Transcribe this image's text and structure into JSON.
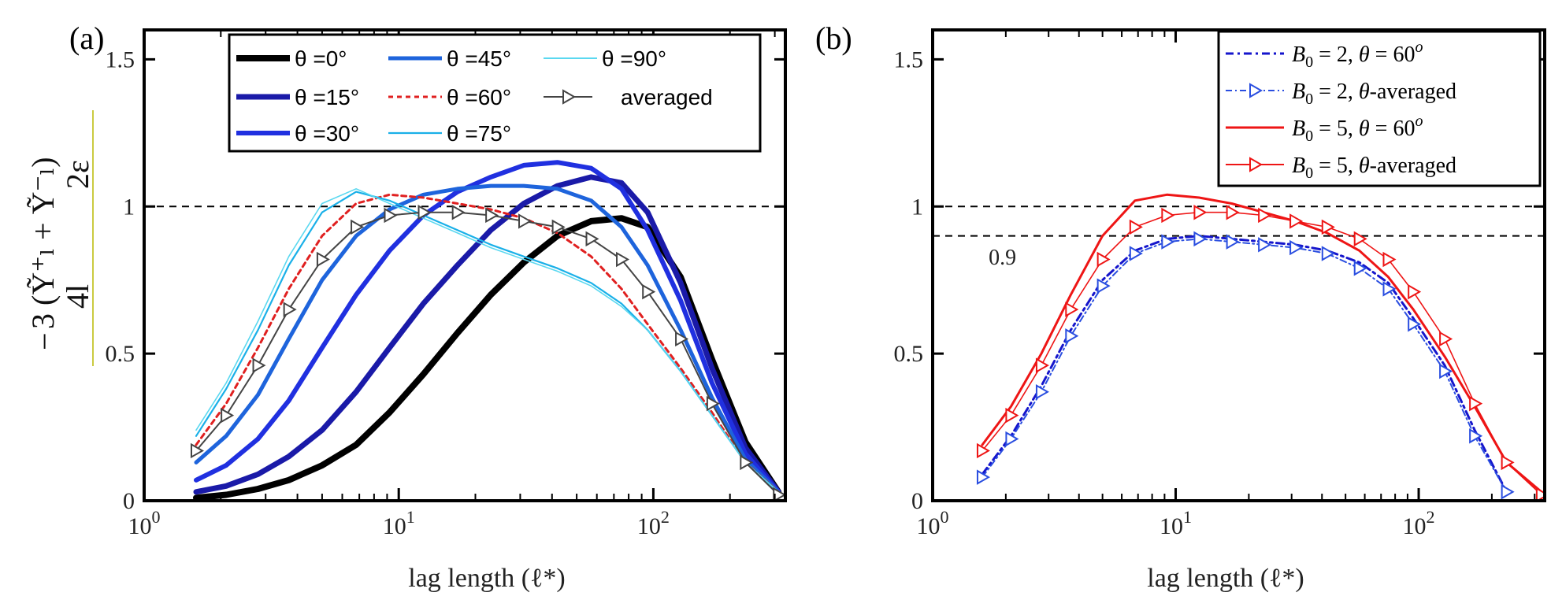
{
  "chart_data": [
    {
      "type": "line",
      "panel_label": "(a)",
      "xlabel": "lag length (ℓ*)",
      "ylabel": {
        "numerator": "3 (Ỹ⁺ₗ + Ỹ⁻ₗ)",
        "denominator_left": "4l",
        "denominator_right": "2ε",
        "minus": "−"
      },
      "xscale": "log",
      "xlim": [
        1,
        330
      ],
      "ylim": [
        0,
        1.6
      ],
      "xticks": [
        1,
        10,
        100
      ],
      "xtick_labels": [
        {
          "base": "10",
          "exp": "0"
        },
        {
          "base": "10",
          "exp": "1"
        },
        {
          "base": "10",
          "exp": "2"
        }
      ],
      "yticks": [
        0,
        0.5,
        1,
        1.5
      ],
      "ytick_labels": [
        "0",
        "0.5",
        "1",
        "1.5"
      ],
      "reference_lines": [
        1.0
      ],
      "legend": {
        "location": "top",
        "columns": 3
      },
      "series": [
        {
          "name": "θ =0°",
          "color": "#000000",
          "width": 8,
          "dash": "none",
          "marker": "none",
          "x": [
            1.6,
            2.1,
            2.8,
            3.7,
            5.0,
            6.8,
            9.2,
            12.5,
            17,
            23,
            31,
            42,
            57,
            75,
            95,
            128,
            170,
            230,
            310
          ],
          "y": [
            0.01,
            0.02,
            0.04,
            0.07,
            0.12,
            0.19,
            0.3,
            0.43,
            0.57,
            0.7,
            0.81,
            0.9,
            0.95,
            0.96,
            0.93,
            0.76,
            0.48,
            0.2,
            0.03
          ]
        },
        {
          "name": "θ =15°",
          "color": "#1a1aa8",
          "width": 7,
          "dash": "none",
          "marker": "none",
          "x": [
            1.6,
            2.1,
            2.8,
            3.7,
            5.0,
            6.8,
            9.2,
            12.5,
            17,
            23,
            31,
            42,
            57,
            75,
            95,
            128,
            170,
            230,
            310
          ],
          "y": [
            0.03,
            0.05,
            0.09,
            0.15,
            0.24,
            0.37,
            0.52,
            0.67,
            0.8,
            0.92,
            1.01,
            1.07,
            1.1,
            1.08,
            0.98,
            0.74,
            0.45,
            0.18,
            0.03
          ]
        },
        {
          "name": "θ =30°",
          "color": "#2030e0",
          "width": 6,
          "dash": "none",
          "marker": "none",
          "x": [
            1.6,
            2.1,
            2.8,
            3.7,
            5.0,
            6.8,
            9.2,
            12.5,
            17,
            23,
            31,
            42,
            57,
            75,
            95,
            128,
            170,
            230,
            310
          ],
          "y": [
            0.07,
            0.12,
            0.21,
            0.34,
            0.52,
            0.7,
            0.85,
            0.97,
            1.05,
            1.1,
            1.14,
            1.15,
            1.13,
            1.06,
            0.92,
            0.68,
            0.4,
            0.16,
            0.03
          ]
        },
        {
          "name": "θ =45°",
          "color": "#1e64dc",
          "width": 5,
          "dash": "none",
          "marker": "none",
          "x": [
            1.6,
            2.1,
            2.8,
            3.7,
            5.0,
            6.8,
            9.2,
            12.5,
            17,
            23,
            31,
            42,
            57,
            75,
            95,
            128,
            170,
            230,
            310
          ],
          "y": [
            0.13,
            0.22,
            0.36,
            0.55,
            0.75,
            0.9,
            0.99,
            1.04,
            1.06,
            1.07,
            1.07,
            1.06,
            1.02,
            0.93,
            0.8,
            0.58,
            0.35,
            0.14,
            0.03
          ]
        },
        {
          "name": "θ =60°",
          "color": "#e02020",
          "width": 3,
          "dash": "6,5",
          "marker": "none",
          "x": [
            1.6,
            2.1,
            2.8,
            3.7,
            5.0,
            6.8,
            9.2,
            12.5,
            17,
            23,
            31,
            42,
            57,
            75,
            95,
            128,
            170,
            230,
            310
          ],
          "y": [
            0.19,
            0.33,
            0.52,
            0.72,
            0.9,
            1.01,
            1.04,
            1.03,
            1.01,
            0.99,
            0.96,
            0.91,
            0.83,
            0.72,
            0.6,
            0.45,
            0.3,
            0.13,
            0.03
          ]
        },
        {
          "name": "θ =75°",
          "color": "#1ab0e8",
          "width": 2.2,
          "dash": "none",
          "marker": "none",
          "x": [
            1.6,
            2.1,
            2.8,
            3.7,
            5.0,
            6.8,
            9.2,
            12.5,
            17,
            23,
            31,
            42,
            57,
            75,
            95,
            128,
            170,
            230,
            310
          ],
          "y": [
            0.22,
            0.38,
            0.58,
            0.8,
            0.98,
            1.05,
            1.02,
            0.97,
            0.92,
            0.87,
            0.83,
            0.79,
            0.74,
            0.67,
            0.58,
            0.44,
            0.29,
            0.13,
            0.03
          ]
        },
        {
          "name": "θ =90°",
          "color": "#5ad8f0",
          "width": 1.6,
          "dash": "none",
          "marker": "none",
          "x": [
            1.6,
            2.1,
            2.8,
            3.7,
            5.0,
            6.8,
            9.2,
            12.5,
            17,
            23,
            31,
            42,
            57,
            75,
            95,
            128,
            170,
            230,
            310
          ],
          "y": [
            0.24,
            0.4,
            0.61,
            0.83,
            1.01,
            1.06,
            1.01,
            0.96,
            0.91,
            0.86,
            0.82,
            0.78,
            0.73,
            0.66,
            0.58,
            0.44,
            0.29,
            0.13,
            0.03
          ]
        },
        {
          "name": "averaged",
          "color": "#444444",
          "width": 2,
          "dash": "none",
          "marker": "triangle-right",
          "x": [
            1.6,
            2.1,
            2.8,
            3.7,
            5.0,
            6.8,
            9.2,
            12.5,
            17,
            23,
            31,
            42,
            57,
            75,
            95,
            128,
            170,
            230,
            310
          ],
          "y": [
            0.17,
            0.29,
            0.46,
            0.65,
            0.82,
            0.93,
            0.97,
            0.98,
            0.98,
            0.97,
            0.95,
            0.93,
            0.89,
            0.82,
            0.71,
            0.55,
            0.33,
            0.13,
            0.02
          ]
        }
      ]
    },
    {
      "type": "line",
      "panel_label": "(b)",
      "xlabel": "lag length (ℓ*)",
      "xscale": "log",
      "xlim": [
        1,
        330
      ],
      "ylim": [
        0,
        1.6
      ],
      "xticks": [
        1,
        10,
        100
      ],
      "xtick_labels": [
        {
          "base": "10",
          "exp": "0"
        },
        {
          "base": "10",
          "exp": "1"
        },
        {
          "base": "10",
          "exp": "2"
        }
      ],
      "yticks": [
        0,
        0.5,
        1,
        1.5
      ],
      "ytick_labels": [
        "0",
        "0.5",
        "1",
        "1.5"
      ],
      "reference_lines": [
        1.0,
        0.9
      ],
      "annotations": [
        {
          "text": "0.9",
          "x": 1.7,
          "y": 0.83
        }
      ],
      "legend": {
        "location": "top-right",
        "columns": 1
      },
      "series": [
        {
          "name": "B0 = 2, θ = 60o",
          "label": {
            "sym": "B",
            "sub": "0",
            "mid": " = 2, ",
            "theta": "θ",
            "rest": " = 60",
            "sup": "o"
          },
          "color": "#1515cc",
          "width": 3,
          "dash": "10,5,3,5",
          "marker": "none",
          "x": [
            1.6,
            2.1,
            2.8,
            3.7,
            5.0,
            6.8,
            9.2,
            12.5,
            17,
            23,
            31,
            42,
            57,
            75,
            95,
            128,
            170,
            230
          ],
          "y": [
            0.09,
            0.22,
            0.39,
            0.58,
            0.75,
            0.85,
            0.89,
            0.9,
            0.89,
            0.88,
            0.87,
            0.85,
            0.81,
            0.74,
            0.62,
            0.46,
            0.24,
            0.03
          ]
        },
        {
          "name": "B0 = 2, θ-averaged",
          "label": {
            "sym": "B",
            "sub": "0",
            "mid": " = 2, ",
            "theta": "θ",
            "rest": "-averaged",
            "sup": ""
          },
          "color": "#2a4ee0",
          "width": 2,
          "dash": "8,4,2,4",
          "marker": "triangle-right",
          "x": [
            1.6,
            2.1,
            2.8,
            3.7,
            5.0,
            6.8,
            9.2,
            12.5,
            17,
            23,
            31,
            42,
            57,
            75,
            95,
            128,
            170,
            230
          ],
          "y": [
            0.08,
            0.21,
            0.37,
            0.56,
            0.73,
            0.84,
            0.88,
            0.89,
            0.88,
            0.87,
            0.86,
            0.84,
            0.79,
            0.72,
            0.6,
            0.44,
            0.22,
            0.03
          ]
        },
        {
          "name": "B0 = 5, θ = 60o",
          "label": {
            "sym": "B",
            "sub": "0",
            "mid": " = 5, ",
            "theta": "θ",
            "rest": " = 60",
            "sup": "o"
          },
          "color": "#ee1515",
          "width": 3,
          "dash": "none",
          "marker": "none",
          "x": [
            1.6,
            2.1,
            2.8,
            3.7,
            5.0,
            6.8,
            9.2,
            12.5,
            17,
            23,
            31,
            42,
            57,
            75,
            95,
            128,
            170,
            230,
            320
          ],
          "y": [
            0.19,
            0.32,
            0.5,
            0.7,
            0.9,
            1.02,
            1.04,
            1.03,
            1.01,
            0.98,
            0.95,
            0.91,
            0.85,
            0.76,
            0.65,
            0.49,
            0.32,
            0.13,
            0.03
          ]
        },
        {
          "name": "B0 = 5, θ-averaged",
          "label": {
            "sym": "B",
            "sub": "0",
            "mid": " = 5, ",
            "theta": "θ",
            "rest": "-averaged",
            "sup": ""
          },
          "color": "#ee1515",
          "width": 1.6,
          "dash": "none",
          "marker": "triangle-right",
          "x": [
            1.6,
            2.1,
            2.8,
            3.7,
            5.0,
            6.8,
            9.2,
            12.5,
            17,
            23,
            31,
            42,
            57,
            75,
            95,
            128,
            170,
            230,
            320
          ],
          "y": [
            0.17,
            0.29,
            0.46,
            0.65,
            0.82,
            0.93,
            0.97,
            0.98,
            0.98,
            0.97,
            0.95,
            0.93,
            0.89,
            0.82,
            0.71,
            0.55,
            0.33,
            0.13,
            0.02
          ]
        }
      ]
    }
  ]
}
